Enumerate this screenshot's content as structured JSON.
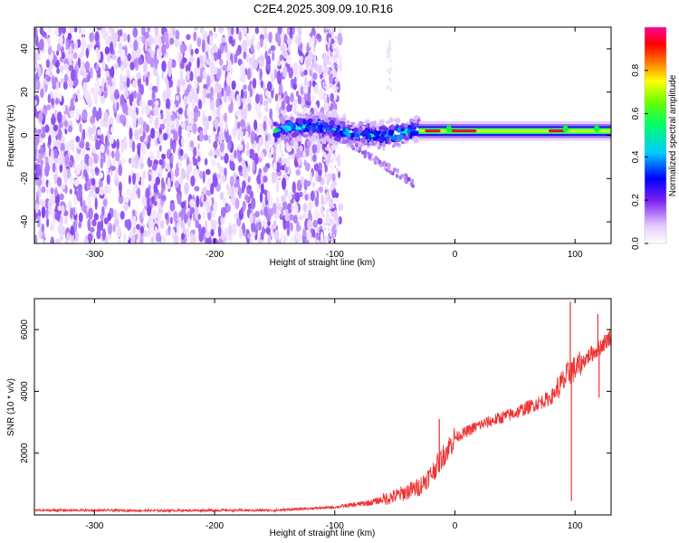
{
  "figure_title": "C2E4.2025.309.09.10.R16",
  "chart_data": [
    {
      "type": "heatmap",
      "title": "",
      "xlabel": "Height of straight line (km)",
      "ylabel": "Frequency (Hz)",
      "xlim": [
        -350,
        130
      ],
      "ylim": [
        -50,
        50
      ],
      "xticks": [
        -300,
        -200,
        -100,
        0,
        100
      ],
      "yticks": [
        -40,
        -20,
        0,
        20,
        40
      ],
      "colorbar": {
        "label": "Normalized spectral amplitude",
        "range": [
          0,
          1
        ],
        "ticks": [
          0.0,
          0.2,
          0.4,
          0.6,
          0.8
        ],
        "tick_labels": [
          "0.0",
          "0.2",
          "0.4",
          "0.6",
          "0.8"
        ],
        "colors": [
          "#ffffff",
          "#d8b4fe",
          "#7c3aed",
          "#0000ff",
          "#00ffff",
          "#00ff00",
          "#ffff00",
          "#ff0000",
          "#ff00cc"
        ]
      },
      "regions": [
        {
          "name": "noise",
          "x_range": [
            -350,
            -100
          ],
          "freq_range": [
            -50,
            50
          ],
          "amplitude": 0.15
        },
        {
          "name": "scintillation",
          "x_range": [
            -150,
            -30
          ],
          "freq_center": 2,
          "amplitude": 0.4
        },
        {
          "name": "tone",
          "x_range": [
            -30,
            130
          ],
          "freq_center": 2,
          "amplitude": 0.85
        }
      ],
      "tail": {
        "x_range": [
          -90,
          -35
        ],
        "freq_range": [
          -3,
          -22
        ]
      }
    },
    {
      "type": "line",
      "title": "",
      "xlabel": "Height of straight line (km)",
      "ylabel": "SNR (10 * v/v)",
      "xlim": [
        -350,
        130
      ],
      "ylim": [
        0,
        7000
      ],
      "xticks": [
        -300,
        -200,
        -100,
        0,
        100
      ],
      "yticks": [
        2000,
        4000,
        6000
      ],
      "color": "#ee3333",
      "series": [
        {
          "name": "SNR",
          "x": [
            -350,
            -300,
            -250,
            -200,
            -150,
            -100,
            -70,
            -50,
            -30,
            -20,
            -10,
            0,
            20,
            50,
            80,
            90,
            97,
            100,
            110,
            120,
            130
          ],
          "values": [
            150,
            150,
            140,
            150,
            150,
            250,
            400,
            600,
            900,
            1300,
            1900,
            2500,
            2900,
            3300,
            3800,
            4300,
            4700,
            4700,
            5100,
            5400,
            5800
          ]
        }
      ],
      "spikes": [
        {
          "x": -13,
          "value": 3100
        },
        {
          "x": 96,
          "value": 6900
        },
        {
          "x": 97,
          "value": 450
        },
        {
          "x": 119,
          "value": 6500
        },
        {
          "x": 120,
          "value": 3800
        }
      ]
    }
  ]
}
